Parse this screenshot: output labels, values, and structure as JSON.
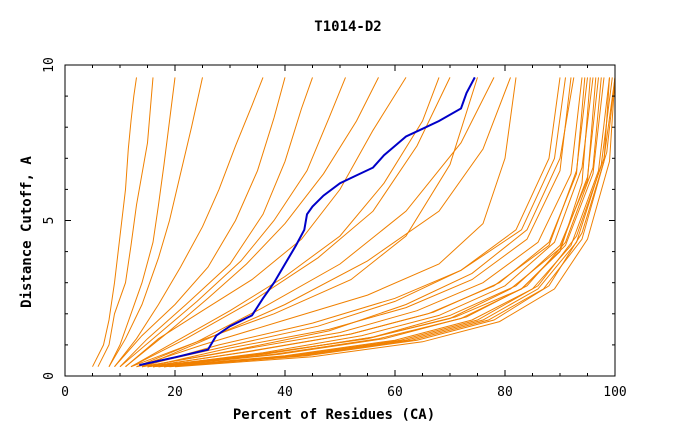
{
  "chart_data": {
    "type": "line",
    "title": "T1014-D2",
    "xlabel": "Percent of Residues (CA)",
    "ylabel": "Distance Cutoff, A",
    "xlim": [
      0,
      100
    ],
    "ylim": [
      0,
      10
    ],
    "x_ticks": [
      0,
      20,
      40,
      60,
      80,
      100
    ],
    "y_ticks": [
      0,
      5,
      10
    ],
    "grid": false,
    "legend": "none",
    "colors": {
      "other": "#f08000",
      "highlight": "#0000c8",
      "frame": "#000000"
    },
    "highlight_series": {
      "x": [
        13.5,
        20,
        26,
        27.5,
        30,
        34,
        36,
        38,
        40,
        42,
        43.5,
        44,
        45,
        47,
        50,
        53,
        56,
        58,
        60,
        62,
        65,
        68,
        72,
        73,
        74.5
      ],
      "y": [
        0.35,
        0.6,
        0.85,
        1.3,
        1.6,
        1.95,
        2.5,
        3.0,
        3.6,
        4.2,
        4.7,
        5.2,
        5.45,
        5.8,
        6.2,
        6.45,
        6.7,
        7.1,
        7.4,
        7.7,
        7.95,
        8.2,
        8.6,
        9.1,
        9.6
      ]
    },
    "series": [
      {
        "x": [
          5,
          7,
          8,
          9,
          10,
          11,
          11.5,
          12,
          12.5,
          13
        ],
        "y": [
          0.3,
          1,
          1.8,
          3,
          4.5,
          6,
          7.3,
          8.2,
          9,
          9.6
        ]
      },
      {
        "x": [
          6,
          8,
          9,
          11,
          12,
          13,
          15,
          16
        ],
        "y": [
          0.3,
          1,
          2,
          3,
          4.2,
          5.5,
          7.5,
          9.6
        ]
      },
      {
        "x": [
          8,
          10,
          12,
          14,
          16,
          17,
          18,
          19,
          20
        ],
        "y": [
          0.3,
          1,
          2,
          3,
          4.3,
          5.5,
          6.8,
          8.2,
          9.6
        ]
      },
      {
        "x": [
          8,
          11,
          14,
          17,
          19,
          21,
          23,
          25
        ],
        "y": [
          0.3,
          1.2,
          2.3,
          3.8,
          5,
          6.5,
          8,
          9.6
        ]
      },
      {
        "x": [
          9,
          13,
          17,
          21,
          25,
          28,
          31,
          34,
          36
        ],
        "y": [
          0.3,
          1.2,
          2.3,
          3.5,
          4.8,
          6,
          7.4,
          8.7,
          9.6
        ]
      },
      {
        "x": [
          9,
          14,
          20,
          26,
          31,
          35,
          38,
          40
        ],
        "y": [
          0.3,
          1.3,
          2.3,
          3.5,
          5,
          6.6,
          8.3,
          9.6
        ]
      },
      {
        "x": [
          10,
          15,
          22,
          30,
          36,
          40,
          43,
          45
        ],
        "y": [
          0.3,
          1.2,
          2.3,
          3.6,
          5.2,
          6.9,
          8.6,
          9.6
        ]
      },
      {
        "x": [
          10,
          16,
          24,
          32,
          38,
          44,
          48,
          51
        ],
        "y": [
          0.3,
          1.2,
          2.4,
          3.7,
          5,
          6.6,
          8.3,
          9.6
        ]
      },
      {
        "x": [
          11,
          18,
          26,
          33,
          40,
          47,
          53,
          57
        ],
        "y": [
          0.3,
          1.3,
          2.5,
          3.6,
          4.9,
          6.5,
          8.2,
          9.6
        ]
      },
      {
        "x": [
          11,
          17,
          25,
          34,
          43,
          50,
          56,
          62
        ],
        "y": [
          0.3,
          1.2,
          2.1,
          3.1,
          4.4,
          6,
          7.9,
          9.6
        ]
      },
      {
        "x": [
          12,
          20,
          30,
          40,
          50,
          58,
          65,
          68
        ],
        "y": [
          0.3,
          1.1,
          2.1,
          3.2,
          4.5,
          6.2,
          8.2,
          9.6
        ]
      },
      {
        "x": [
          12,
          22,
          34,
          46,
          56,
          64,
          70
        ],
        "y": [
          0.3,
          1.2,
          2.4,
          3.8,
          5.3,
          7.4,
          9.6
        ]
      },
      {
        "x": [
          13,
          24,
          36,
          50,
          62,
          72,
          78
        ],
        "y": [
          0.3,
          1.1,
          2.2,
          3.6,
          5.3,
          7.5,
          9.6
        ]
      },
      {
        "x": [
          14,
          26,
          40,
          55,
          68,
          76,
          81
        ],
        "y": [
          0.3,
          1.2,
          2.3,
          3.7,
          5.3,
          7.3,
          9.6
        ]
      },
      {
        "x": [
          12,
          24,
          38,
          52,
          62,
          70,
          75
        ],
        "y": [
          0.3,
          1.1,
          2,
          3.1,
          4.5,
          6.8,
          9.6
        ]
      },
      {
        "x": [
          13,
          25,
          40,
          55,
          68,
          76,
          80,
          82
        ],
        "y": [
          0.3,
          1,
          1.8,
          2.6,
          3.6,
          4.9,
          7,
          9.6
        ]
      },
      {
        "x": [
          14,
          28,
          45,
          60,
          72,
          82,
          88,
          90
        ],
        "y": [
          0.3,
          1,
          1.7,
          2.5,
          3.4,
          4.7,
          7,
          9.6
        ]
      },
      {
        "x": [
          15,
          30,
          48,
          62,
          74,
          84,
          90,
          92
        ],
        "y": [
          0.3,
          0.9,
          1.5,
          2.2,
          3.1,
          4.4,
          6.6,
          9.6
        ]
      },
      {
        "x": [
          14,
          32,
          50,
          64,
          76,
          86,
          92,
          94
        ],
        "y": [
          0.3,
          0.85,
          1.4,
          2.1,
          3,
          4.3,
          6.5,
          9.6
        ]
      },
      {
        "x": [
          15,
          34,
          52,
          66,
          78,
          88,
          93,
          95
        ],
        "y": [
          0.3,
          0.8,
          1.35,
          2,
          2.9,
          4.2,
          6.6,
          9.6
        ]
      },
      {
        "x": [
          16,
          36,
          54,
          68,
          80,
          89,
          94,
          96
        ],
        "y": [
          0.3,
          0.75,
          1.3,
          1.95,
          2.9,
          4.3,
          6.7,
          9.6
        ]
      },
      {
        "x": [
          15,
          35,
          55,
          70,
          81,
          90,
          95,
          97
        ],
        "y": [
          0.3,
          0.7,
          1.2,
          1.85,
          2.8,
          4.1,
          6.4,
          9.6
        ]
      },
      {
        "x": [
          16,
          38,
          57,
          72,
          83,
          91,
          96,
          98
        ],
        "y": [
          0.3,
          0.7,
          1.2,
          1.85,
          2.8,
          4.2,
          6.5,
          9.6
        ]
      },
      {
        "x": [
          17,
          40,
          60,
          74,
          85,
          92,
          97,
          99
        ],
        "y": [
          0.3,
          0.65,
          1.15,
          1.8,
          2.8,
          4.2,
          6.6,
          9.6
        ]
      },
      {
        "x": [
          18,
          42,
          62,
          76,
          86,
          93,
          97.5,
          99.5
        ],
        "y": [
          0.3,
          0.65,
          1.15,
          1.8,
          2.8,
          4.3,
          6.8,
          9.6
        ]
      },
      {
        "x": [
          16,
          36,
          56,
          70,
          82,
          90,
          95,
          96.5
        ],
        "y": [
          0.3,
          0.7,
          1.25,
          1.95,
          2.9,
          4.2,
          6.3,
          9.6
        ]
      },
      {
        "x": [
          17,
          39,
          58,
          73,
          84,
          91,
          96,
          97.5
        ],
        "y": [
          0.3,
          0.7,
          1.2,
          1.9,
          2.9,
          4.3,
          6.7,
          9.6
        ]
      },
      {
        "x": [
          18,
          41,
          61,
          75,
          86,
          93,
          98,
          100
        ],
        "y": [
          0.3,
          0.65,
          1.15,
          1.8,
          2.9,
          4.5,
          7,
          9.6
        ]
      },
      {
        "x": [
          19,
          44,
          64,
          78,
          88,
          94,
          98.5,
          100
        ],
        "y": [
          0.3,
          0.65,
          1.15,
          1.8,
          2.9,
          4.6,
          7.2,
          9.6
        ]
      },
      {
        "x": [
          20,
          45,
          65,
          79,
          89,
          95,
          99,
          100
        ],
        "y": [
          0.3,
          0.62,
          1.1,
          1.75,
          2.8,
          4.4,
          6.9,
          9.6
        ]
      },
      {
        "x": [
          14,
          30,
          48,
          62,
          74,
          84,
          90,
          92.5
        ],
        "y": [
          0.3,
          0.8,
          1.45,
          2.3,
          3.3,
          4.7,
          7,
          9.6
        ]
      },
      {
        "x": [
          13,
          28,
          46,
          60,
          72,
          83,
          89,
          91
        ],
        "y": [
          0.3,
          0.9,
          1.6,
          2.4,
          3.4,
          4.7,
          7,
          9.6
        ]
      },
      {
        "x": [
          16,
          37,
          56,
          71,
          83,
          90,
          94,
          95.5
        ],
        "y": [
          0.3,
          0.72,
          1.25,
          1.9,
          2.8,
          4,
          6.2,
          9.6
        ]
      },
      {
        "x": [
          18,
          43,
          63,
          77,
          87,
          94,
          98,
          99
        ],
        "y": [
          0.3,
          0.65,
          1.15,
          1.8,
          2.8,
          4.4,
          6.9,
          9.6
        ]
      },
      {
        "x": [
          15,
          33,
          52,
          67,
          79,
          88,
          93,
          94.5
        ],
        "y": [
          0.3,
          0.78,
          1.35,
          2.05,
          3,
          4.3,
          6.5,
          9.6
        ]
      }
    ]
  }
}
